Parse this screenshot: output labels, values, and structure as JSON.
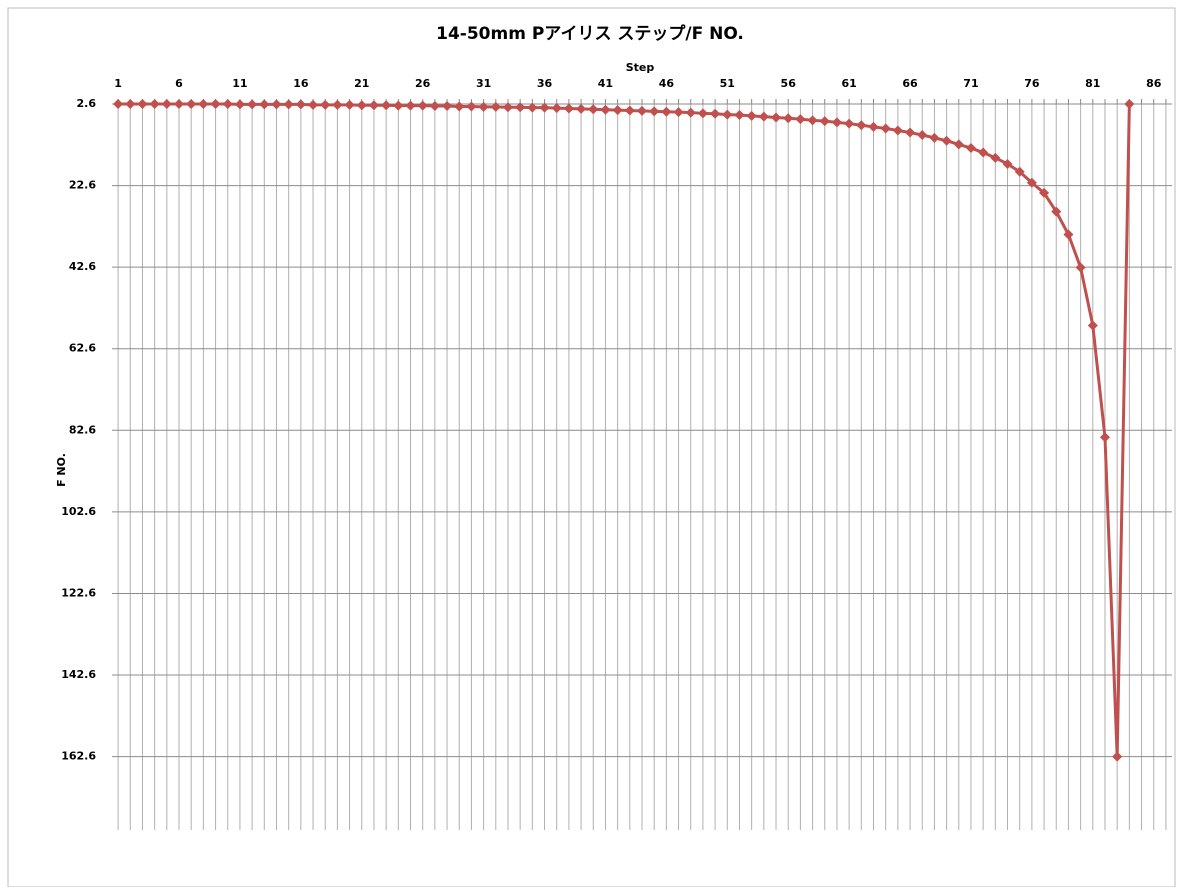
{
  "chart_data": {
    "type": "line",
    "title": "14-50mm Pアイリス  ステップ/F NO.",
    "x_label": "Step",
    "y_label": "F NO.",
    "categories": [
      1,
      null,
      null,
      null,
      null,
      6,
      null,
      null,
      null,
      null,
      11,
      null,
      null,
      null,
      null,
      16,
      null,
      null,
      null,
      null,
      21,
      null,
      null,
      null,
      null,
      26,
      null,
      null,
      null,
      null,
      31,
      null,
      null,
      null,
      null,
      36,
      null,
      null,
      null,
      null,
      41,
      null,
      null,
      null,
      null,
      46,
      null,
      null,
      null,
      null,
      51,
      null,
      null,
      null,
      null,
      56,
      null,
      null,
      null,
      null,
      61,
      null,
      null,
      null,
      null,
      66,
      null,
      null,
      null,
      null,
      71,
      null,
      null,
      null,
      null,
      76,
      null,
      null,
      null,
      null,
      81,
      null,
      null,
      null,
      null,
      86,
      null
    ],
    "series": [
      {
        "color": "#c0504d",
        "values": [
          2.6,
          2.6,
          2.6,
          2.6,
          2.6,
          2.6,
          2.6,
          2.6,
          2.6,
          2.6,
          2.7,
          2.7,
          2.7,
          2.7,
          2.7,
          2.7,
          2.8,
          2.8,
          2.8,
          2.8,
          2.9,
          2.9,
          2.9,
          3.0,
          3.0,
          3.0,
          3.1,
          3.1,
          3.2,
          3.2,
          3.3,
          3.3,
          3.4,
          3.4,
          3.5,
          3.5,
          3.6,
          3.7,
          3.8,
          3.9,
          4.0,
          4.1,
          4.2,
          4.3,
          4.4,
          4.5,
          4.6,
          4.7,
          4.9,
          5.0,
          5.2,
          5.3,
          5.5,
          5.7,
          5.9,
          6.1,
          6.3,
          6.6,
          6.8,
          7.1,
          7.4,
          7.8,
          8.2,
          8.6,
          9.1,
          9.6,
          10.2,
          10.9,
          11.6,
          12.5,
          13.4,
          14.5,
          15.8,
          17.3,
          19.2,
          21.9,
          24.4,
          29,
          34.6,
          42.7,
          56.9,
          84.3,
          162.6,
          2.6,
          null,
          null,
          null
        ]
      }
    ],
    "ylim": [
      2.6,
      180.6
    ],
    "yticks": [
      2.6,
      22.6,
      42.6,
      62.6,
      82.6,
      102.6,
      122.6,
      142.6,
      162.6
    ],
    "y_reversed": true,
    "x_axis_position": "top",
    "grid": true
  }
}
